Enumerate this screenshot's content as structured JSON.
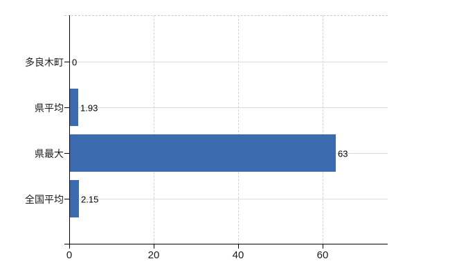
{
  "chart_data": {
    "type": "bar",
    "orientation": "horizontal",
    "title": "",
    "xlabel": "",
    "ylabel": "",
    "categories": [
      "多良木町",
      "県平均",
      "県最大",
      "全国平均"
    ],
    "values": [
      0,
      1.93,
      63,
      2.15
    ],
    "value_labels": [
      "0",
      "1.93",
      "63",
      "2.15"
    ],
    "x_ticks": [
      0,
      20,
      40,
      60
    ],
    "x_tick_labels": [
      "0",
      "20",
      "40",
      "60"
    ],
    "xlim": [
      0,
      75.4
    ],
    "grid": "on",
    "legend": "none",
    "bar_color": "#3c6cb0",
    "grid_h_color": "#d6ded6",
    "grid_v_color": "#d2d2d2",
    "axis_color": "#000000",
    "background_color": "#ffffff"
  }
}
